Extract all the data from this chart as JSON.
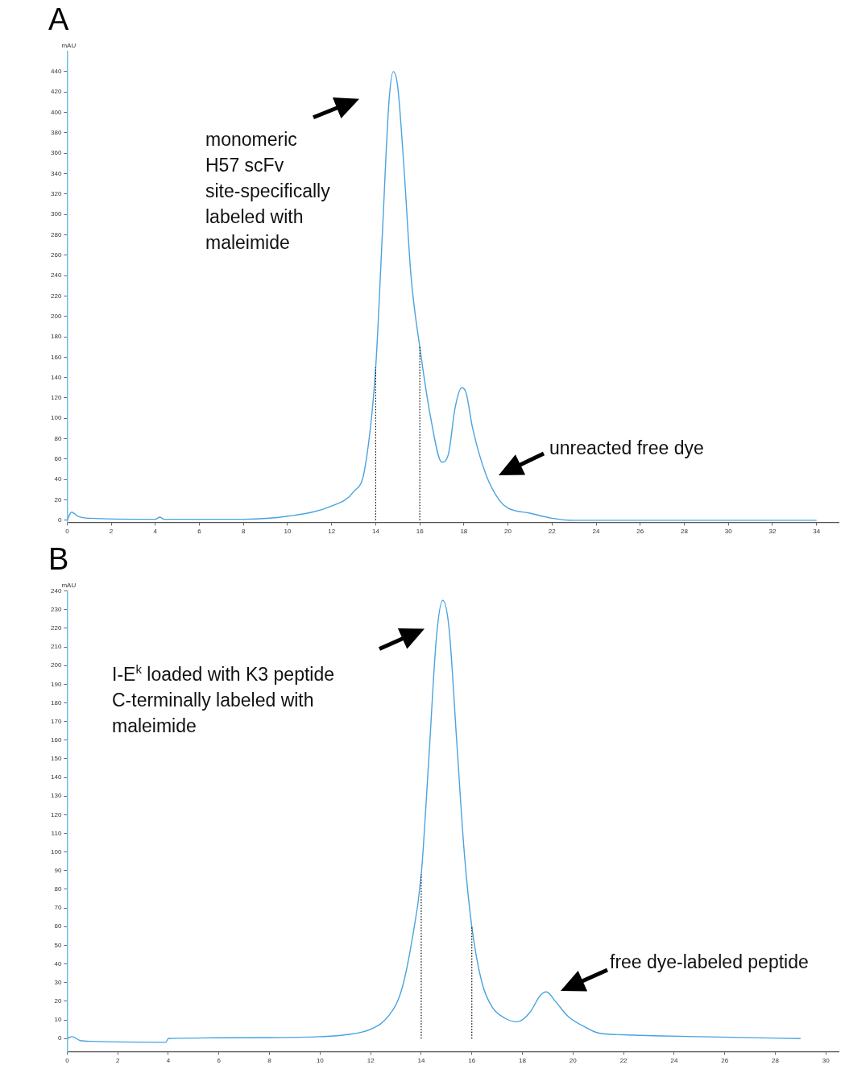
{
  "chart_data": [
    {
      "type": "line",
      "title": "A",
      "ylabel": "mAU",
      "grid": false,
      "legend": false,
      "marker": "none",
      "line_style": "solid",
      "x": [
        0,
        0.2,
        0.5,
        1,
        4,
        4.2,
        4.4,
        8,
        10,
        12,
        13,
        13.5,
        14,
        14.3,
        14.6,
        14.8,
        15,
        15.3,
        15.6,
        16,
        16.5,
        17,
        17.3,
        17.6,
        17.9,
        18.1,
        18.4,
        19,
        19.6,
        20,
        21,
        22,
        23,
        34
      ],
      "series": [
        {
          "color": "#4aa3df",
          "values": [
            0,
            8,
            4,
            2,
            1,
            3,
            1,
            1,
            4,
            14,
            28,
            50,
            150,
            280,
            410,
            440,
            425,
            340,
            240,
            170,
            100,
            57,
            65,
            110,
            130,
            125,
            90,
            45,
            20,
            12,
            7,
            2,
            0,
            0
          ]
        }
      ],
      "xlim": [
        0,
        35
      ],
      "xticks": [
        0,
        2,
        4,
        6,
        8,
        10,
        12,
        14,
        16,
        18,
        20,
        22,
        24,
        26,
        28,
        30,
        32,
        34
      ],
      "ylim": [
        -2,
        460
      ],
      "yticks": [
        0,
        20,
        40,
        60,
        80,
        100,
        120,
        140,
        160,
        180,
        200,
        220,
        240,
        260,
        280,
        300,
        320,
        340,
        360,
        380,
        400,
        420,
        440
      ],
      "ref_lines": [
        {
          "axis": "x",
          "value": 14,
          "color": "#000000",
          "line_style": "dotted"
        },
        {
          "axis": "x",
          "value": 16,
          "color": "#000000",
          "line_style": "dotted"
        }
      ],
      "annotations": [
        "monomeric\nH57 scFv\nsite-specifically\nlabeled with\nmaleimide",
        "unreacted free dye"
      ]
    },
    {
      "type": "line",
      "title": "B",
      "ylabel": "mAU",
      "grid": false,
      "legend": false,
      "marker": "none",
      "line_style": "solid",
      "x": [
        0,
        0.2,
        0.5,
        1,
        3.9,
        4,
        8,
        10,
        11,
        12,
        12.7,
        13.2,
        13.6,
        14,
        14.3,
        14.6,
        14.85,
        15.1,
        15.4,
        15.7,
        16,
        16.4,
        16.8,
        17.3,
        17.8,
        18.3,
        18.7,
        18.95,
        19.3,
        19.8,
        20.5,
        21,
        22,
        25,
        29
      ],
      "series": [
        {
          "color": "#4aa3df",
          "values": [
            0,
            1,
            -1,
            -1.5,
            -2,
            0,
            0.5,
            1,
            2,
            5,
            12,
            25,
            50,
            88,
            150,
            215,
            235,
            220,
            160,
            100,
            60,
            30,
            17,
            11,
            9,
            14,
            23,
            25,
            20,
            12,
            6,
            3,
            2,
            1,
            0
          ]
        }
      ],
      "xlim": [
        0,
        30.5
      ],
      "xticks": [
        0,
        2,
        4,
        6,
        8,
        10,
        12,
        14,
        16,
        18,
        20,
        22,
        24,
        26,
        28,
        30
      ],
      "ylim": [
        -7,
        240
      ],
      "yticks": [
        0,
        10,
        20,
        30,
        40,
        50,
        60,
        70,
        80,
        90,
        100,
        110,
        120,
        130,
        140,
        150,
        160,
        170,
        180,
        190,
        200,
        210,
        220,
        230,
        240
      ],
      "ref_lines": [
        {
          "axis": "x",
          "value": 14,
          "color": "#000000",
          "line_style": "dotted"
        },
        {
          "axis": "x",
          "value": 16,
          "color": "#000000",
          "line_style": "dotted"
        }
      ],
      "annotations": [
        "I-E$^{k}$ loaded with K3 peptide\nC-terminally labeled with\nmaleimide",
        "free dye-labeled peptide"
      ]
    }
  ]
}
